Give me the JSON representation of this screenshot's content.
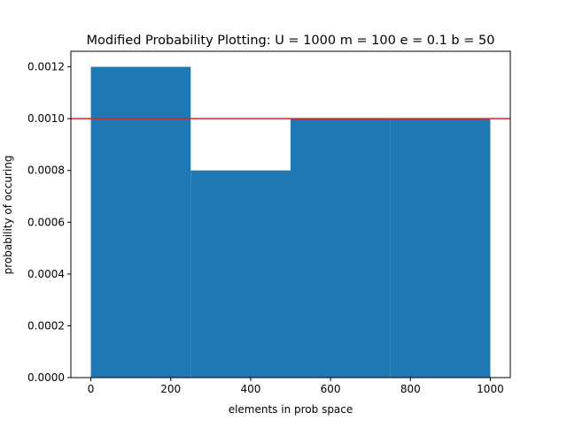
{
  "chart_data": {
    "type": "bar",
    "title": "Modified Probability Plotting:  U = 1000 m = 100 e = 0.1 b = 50",
    "xlabel": "elements in prob space",
    "ylabel": "probability of occuring",
    "xlim": [
      -50,
      1050
    ],
    "ylim": [
      0,
      0.00126
    ],
    "xticks": [
      0,
      200,
      400,
      600,
      800,
      1000
    ],
    "xtick_labels": [
      "0",
      "200",
      "400",
      "600",
      "800",
      "1000"
    ],
    "yticks": [
      0,
      0.0002,
      0.0004,
      0.0006,
      0.0008,
      0.001,
      0.0012
    ],
    "ytick_labels": [
      "0.0000",
      "0.0002",
      "0.0004",
      "0.0006",
      "0.0008",
      "0.0010",
      "0.0012"
    ],
    "bins": [
      {
        "x0": 0,
        "x1": 250,
        "value": 0.0012
      },
      {
        "x0": 250,
        "x1": 500,
        "value": 0.0008
      },
      {
        "x0": 500,
        "x1": 750,
        "value": 0.001
      },
      {
        "x0": 750,
        "x1": 1000,
        "value": 0.001
      }
    ],
    "reference_line": {
      "y": 0.001,
      "color": "#d62728"
    },
    "bar_color": "#1f77b4",
    "grid": false,
    "legend": "none"
  }
}
